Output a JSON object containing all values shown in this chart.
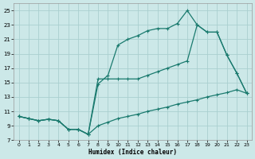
{
  "xlabel": "Humidex (Indice chaleur)",
  "bg_color": "#cce8e8",
  "grid_color": "#aacfcf",
  "line_color": "#1a7a6e",
  "markersize": 3,
  "linewidth": 0.9,
  "xlim": [
    -0.5,
    23.5
  ],
  "ylim": [
    7,
    26
  ],
  "xticks": [
    0,
    1,
    2,
    3,
    4,
    5,
    6,
    7,
    8,
    9,
    10,
    11,
    12,
    13,
    14,
    15,
    16,
    17,
    18,
    19,
    20,
    21,
    22,
    23
  ],
  "yticks": [
    7,
    9,
    11,
    13,
    15,
    17,
    19,
    21,
    23,
    25
  ],
  "line1_x": [
    0,
    1,
    2,
    3,
    4,
    5,
    6,
    7,
    8,
    9,
    10,
    11,
    12,
    13,
    14,
    15,
    16,
    17,
    18,
    19,
    20,
    21,
    22,
    23
  ],
  "line1_y": [
    10.3,
    10.0,
    9.7,
    9.9,
    9.7,
    8.5,
    8.5,
    7.8,
    9.0,
    9.5,
    10.0,
    10.3,
    10.6,
    11.0,
    11.3,
    11.6,
    12.0,
    12.3,
    12.6,
    13.0,
    13.3,
    13.6,
    14.0,
    13.5
  ],
  "line2_x": [
    0,
    1,
    2,
    3,
    4,
    5,
    6,
    7,
    8,
    9,
    10,
    11,
    12,
    13,
    14,
    15,
    16,
    17,
    18,
    19,
    20,
    21,
    22,
    23
  ],
  "line2_y": [
    10.3,
    10.0,
    9.7,
    9.9,
    9.7,
    8.5,
    8.5,
    7.8,
    14.8,
    16.0,
    20.2,
    21.0,
    21.5,
    22.2,
    22.5,
    22.5,
    23.2,
    25.0,
    23.0,
    22.0,
    22.0,
    18.8,
    16.3,
    13.5
  ],
  "line3_x": [
    0,
    1,
    2,
    3,
    4,
    5,
    6,
    7,
    8,
    9,
    10,
    11,
    12,
    13,
    14,
    15,
    16,
    17,
    18,
    19,
    20,
    21,
    22,
    23
  ],
  "line3_y": [
    10.3,
    10.0,
    9.7,
    9.9,
    9.7,
    8.5,
    8.5,
    7.8,
    15.5,
    15.5,
    15.5,
    15.5,
    15.5,
    16.0,
    16.5,
    17.0,
    17.5,
    18.0,
    23.0,
    22.0,
    22.0,
    18.8,
    16.3,
    13.5
  ]
}
